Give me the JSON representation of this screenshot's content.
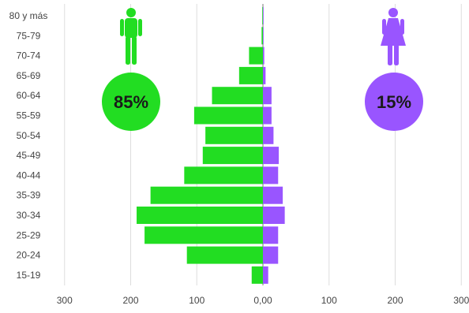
{
  "chart_data": {
    "type": "bar",
    "orientation": "horizontal-diverging",
    "categories": [
      "80 y más",
      "75-79",
      "70-74",
      "65-69",
      "60-64",
      "55-59",
      "50-54",
      "45-49",
      "40-44",
      "35-39",
      "30-34",
      "25-29",
      "20-24",
      "15-19"
    ],
    "series": [
      {
        "color": "#22dd22",
        "side": "left",
        "values": [
          1,
          2,
          21,
          36,
          77,
          104,
          87,
          91,
          119,
          170,
          191,
          179,
          115,
          17
        ]
      },
      {
        "color": "#9955ff",
        "side": "right",
        "values": [
          1,
          1,
          2,
          4,
          13,
          13,
          16,
          24,
          23,
          30,
          33,
          23,
          23,
          8
        ]
      }
    ],
    "xlim": [
      -300,
      300
    ],
    "x_tick_values": [
      -300,
      -200,
      -100,
      0,
      100,
      200,
      300
    ],
    "x_tick_labels": [
      "300",
      "200",
      "100",
      "0,00",
      "100",
      "200",
      "300"
    ],
    "grid": "vertical",
    "legend": "none"
  },
  "annotations": {
    "male": {
      "icon": "male-person-icon",
      "percent": "85%",
      "color": "#22dd22"
    },
    "female": {
      "icon": "female-person-icon",
      "percent": "15%",
      "color": "#9955ff"
    }
  }
}
